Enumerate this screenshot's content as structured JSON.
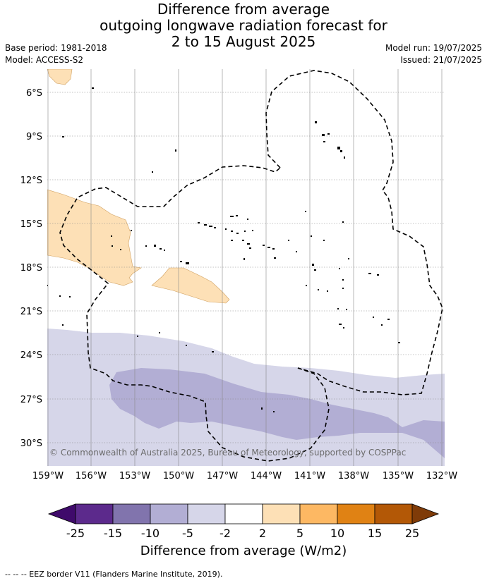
{
  "title": {
    "line1": "Difference from average",
    "line2": "outgoing longwave radiation forecast for",
    "line3": "2 to 15 August 2025"
  },
  "meta": {
    "base_period": "Base period: 1981-2018",
    "model": "Model: ACCESS-S2",
    "model_run": "Model run: 19/07/2025",
    "issued": "Issued: 21/07/2025"
  },
  "map": {
    "lat_labels": [
      "6°S",
      "9°S",
      "12°S",
      "15°S",
      "18°S",
      "21°S",
      "24°S",
      "27°S",
      "30°S"
    ],
    "lon_labels": [
      "159°W",
      "156°W",
      "153°W",
      "150°W",
      "147°W",
      "144°W",
      "141°W",
      "138°W",
      "135°W",
      "132°W"
    ],
    "copyright": "© Commonwealth of Australia 2025, Bureau of Meteorology, supported by COSPPac",
    "colors": {
      "neg_light": "#d6d6e9",
      "neg_mid": "#b2aed4",
      "pos_light": "#fde0b6",
      "land": "#000000"
    }
  },
  "colorbar": {
    "ticks": [
      "-25",
      "-15",
      "-10",
      "-5",
      "-2",
      "2",
      "5",
      "10",
      "15",
      "25"
    ],
    "colors": [
      "#3f0a6b",
      "#5c2a8c",
      "#8174ad",
      "#b2aed4",
      "#d6d6e9",
      "#ffffff",
      "#fde0b6",
      "#fdb863",
      "#e08214",
      "#b35806",
      "#7f3b08"
    ],
    "title": "Difference from average (W/m2)"
  },
  "footer": {
    "legend": "-- -- -- EEZ border V11 (Flanders Marine Institute, 2019)."
  }
}
